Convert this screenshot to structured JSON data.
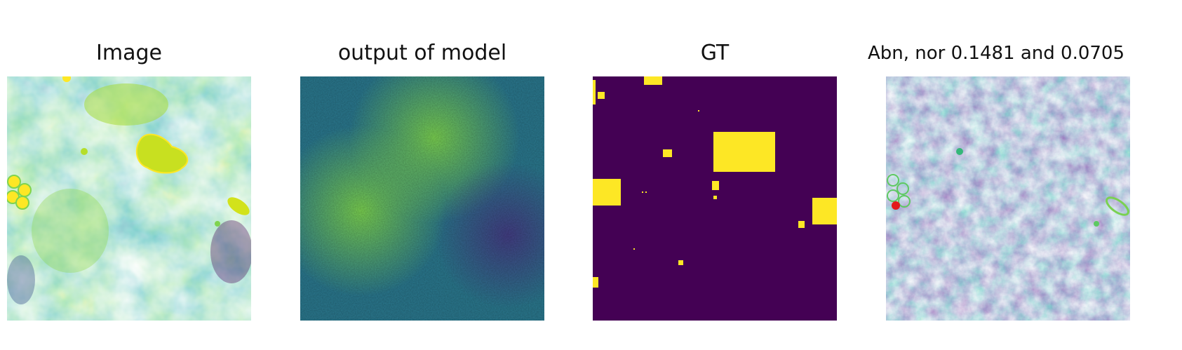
{
  "figure": {
    "panels": [
      {
        "title": "Image"
      },
      {
        "title": "output of model"
      },
      {
        "title": "GT"
      },
      {
        "title": "Abn, nor 0.1481 and 0.0705"
      }
    ]
  },
  "colors": {
    "viridis_dark": "#440154",
    "viridis_blue": "#3b528b",
    "viridis_teal": "#21918c",
    "viridis_green": "#5ec962",
    "viridis_yellow": "#fde725",
    "marker_red": "#e41a1c"
  }
}
